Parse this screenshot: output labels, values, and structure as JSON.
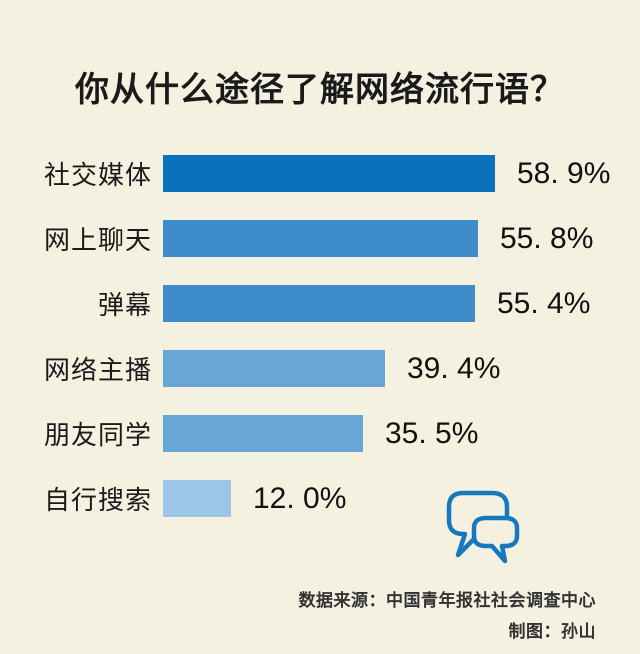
{
  "title": "你从什么途径了解网络流行语？",
  "chart_data": {
    "type": "bar",
    "orientation": "horizontal",
    "title": "你从什么途径了解网络流行语？",
    "categories": [
      "社交媒体",
      "网上聊天",
      "弹幕",
      "网络主播",
      "朋友同学",
      "自行搜索"
    ],
    "values": [
      58.9,
      55.8,
      55.4,
      39.4,
      35.5,
      12.0
    ],
    "value_labels": [
      "58. 9%",
      "55. 8%",
      "55. 4%",
      "39. 4%",
      "35. 5%",
      "12. 0%"
    ],
    "bar_colors": [
      "#0a72bc",
      "#3e8cca",
      "#3e8cca",
      "#68a6d6",
      "#68a6d6",
      "#9dc5e5"
    ],
    "xlim": [
      0,
      60
    ],
    "grid": false,
    "legend": false,
    "value_label_position": "right-of-bar"
  },
  "footer": {
    "source": "数据来源：中国青年报社社会调查中心",
    "credit": "制图：孙山"
  },
  "icon": {
    "name": "chat-bubbles-icon",
    "color": "#1878be"
  },
  "colors": {
    "background": "#f4f1e1",
    "title_text": "#1a1a1a",
    "footer_text": "#333333"
  }
}
